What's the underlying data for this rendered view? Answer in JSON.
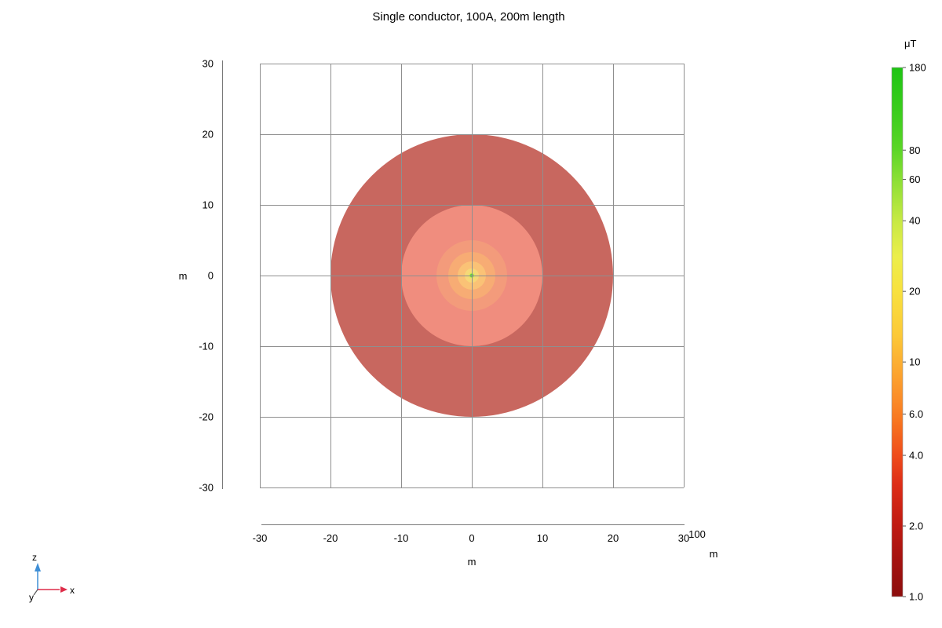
{
  "title": "Single conductor, 100A, 200m length",
  "chart_data": {
    "type": "contour",
    "title": "Single conductor, 100A, 200m length",
    "description": "Magnetic flux density norm around a single straight conductor shown as concentric filled contour bands on a logarithmic color scale",
    "x_axis": {
      "label": "m",
      "min": -30,
      "max": 30,
      "ticks": [
        "-30",
        "-20",
        "-10",
        "0",
        "10",
        "20",
        "30"
      ]
    },
    "y_axis": {
      "label": "m",
      "min": -30,
      "max": 30,
      "ticks": [
        "30",
        "20",
        "10",
        "0",
        "-10",
        "-20",
        "-30"
      ]
    },
    "secondary_x_tick": {
      "value": "100",
      "unit": "m"
    },
    "grid": true,
    "center": {
      "x": 0,
      "y": 0
    },
    "bands": [
      {
        "min_uT": 1,
        "max_uT": 2,
        "outer_radius_m": 20,
        "color": "#c8675f"
      },
      {
        "min_uT": 2,
        "max_uT": 4,
        "outer_radius_m": 10,
        "color": "#f08d7e"
      },
      {
        "min_uT": 4,
        "max_uT": 6,
        "outer_radius_m": 5,
        "color": "#f39b7b"
      },
      {
        "min_uT": 6,
        "max_uT": 10,
        "outer_radius_m": 3.33,
        "color": "#f7ac74"
      },
      {
        "min_uT": 10,
        "max_uT": 20,
        "outer_radius_m": 2,
        "color": "#fac276"
      },
      {
        "min_uT": 20,
        "max_uT": 40,
        "outer_radius_m": 1,
        "color": "#f6d878"
      },
      {
        "min_uT": 40,
        "max_uT": 60,
        "outer_radius_m": 0.5,
        "color": "#e9e468"
      },
      {
        "min_uT": 60,
        "max_uT": 80,
        "outer_radius_m": 0.333,
        "color": "#c8e256"
      },
      {
        "min_uT": 80,
        "max_uT": 180,
        "outer_radius_m": 0.25,
        "color": "#62d33c"
      }
    ],
    "colorbar": {
      "unit": "μT",
      "scale": "log",
      "min": 1.0,
      "max": 180,
      "ticks": [
        {
          "value": 180,
          "label": "180"
        },
        {
          "value": 80,
          "label": "80"
        },
        {
          "value": 60,
          "label": "60"
        },
        {
          "value": 40,
          "label": "40"
        },
        {
          "value": 20,
          "label": "20"
        },
        {
          "value": 10,
          "label": "10"
        },
        {
          "value": 6,
          "label": "6.0"
        },
        {
          "value": 4,
          "label": "4.0"
        },
        {
          "value": 2,
          "label": "2.0"
        },
        {
          "value": 1,
          "label": "1.0"
        }
      ],
      "gradient_stops": [
        {
          "value": 180,
          "color": "#1ec414"
        },
        {
          "value": 110,
          "color": "#3fce1e"
        },
        {
          "value": 80,
          "color": "#5cd627"
        },
        {
          "value": 60,
          "color": "#8bdf34"
        },
        {
          "value": 40,
          "color": "#c7e944"
        },
        {
          "value": 28,
          "color": "#ecee4b"
        },
        {
          "value": 20,
          "color": "#f8e13e"
        },
        {
          "value": 13,
          "color": "#fcc938"
        },
        {
          "value": 10,
          "color": "#fcaf32"
        },
        {
          "value": 7,
          "color": "#fb8d29"
        },
        {
          "value": 5.5,
          "color": "#f7731f"
        },
        {
          "value": 4,
          "color": "#ef4c1b"
        },
        {
          "value": 3,
          "color": "#dd2d17"
        },
        {
          "value": 2,
          "color": "#bf1a12"
        },
        {
          "value": 1.4,
          "color": "#a31210"
        },
        {
          "value": 1,
          "color": "#8c0e0d"
        }
      ]
    }
  },
  "axis_triad": {
    "x": "x",
    "y": "y",
    "z": "z",
    "x_color": "#de2d49",
    "z_color": "#3f8fd6",
    "y_color": "#555555"
  }
}
